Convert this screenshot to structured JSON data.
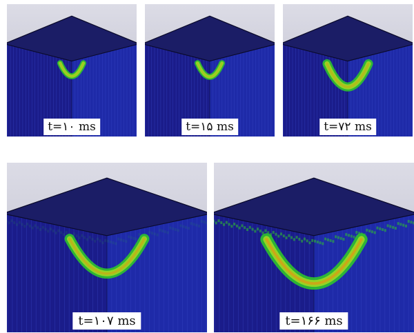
{
  "panels": [
    {
      "id": "p1",
      "time_label": "t=۱۰ ms",
      "size": 0.18,
      "spread": 0
    },
    {
      "id": "p2",
      "time_label": "t=۱۵ ms",
      "size": 0.2,
      "spread": 0
    },
    {
      "id": "p3",
      "time_label": "t=۷۲ ms",
      "size": 0.5,
      "spread": 0
    },
    {
      "id": "p4",
      "time_label": "t=۱۰۷ ms",
      "size": 0.62,
      "spread": 0.2
    },
    {
      "id": "p5",
      "time_label": "t=۱۶۶ ms",
      "size": 0.85,
      "spread": 1
    }
  ],
  "colors": {
    "top_face": "#1b1d66",
    "left_face": "#1a1c8a",
    "right_face": "#1e2aa8",
    "edge": "#0a0a2a",
    "mesh_line": "#3a48c8",
    "damage_outer": "#2fc42c",
    "damage_mid": "#a8d820",
    "damage_core": "#f08a10"
  }
}
